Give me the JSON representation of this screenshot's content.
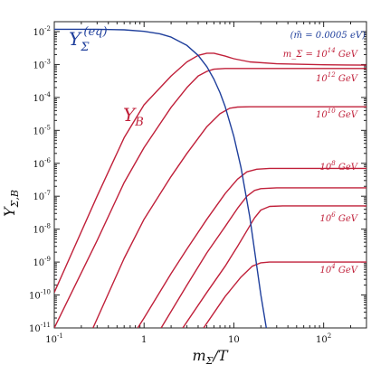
{
  "chart_data": {
    "type": "line",
    "title": "",
    "xlabel": "m_Σ/T",
    "ylabel": "Y_Σ,B",
    "x_scale": "log",
    "y_scale": "log",
    "xlim": [
      0.1,
      300
    ],
    "ylim": [
      1e-11,
      0.02
    ],
    "grid": false,
    "x_ticks": [
      {
        "value": 0.1,
        "base": "10",
        "exp": "-1"
      },
      {
        "value": 1,
        "base": "1",
        "exp": ""
      },
      {
        "value": 10,
        "base": "10",
        "exp": ""
      },
      {
        "value": 100,
        "base": "10",
        "exp": "2"
      }
    ],
    "y_ticks": [
      {
        "value": 0.01,
        "base": "10",
        "exp": "-2"
      },
      {
        "value": 0.001,
        "base": "10",
        "exp": "-3"
      },
      {
        "value": 0.0001,
        "base": "10",
        "exp": "-4"
      },
      {
        "value": 1e-05,
        "base": "10",
        "exp": "-5"
      },
      {
        "value": 1e-06,
        "base": "10",
        "exp": "-6"
      },
      {
        "value": 1e-07,
        "base": "10",
        "exp": "-7"
      },
      {
        "value": 1e-08,
        "base": "10",
        "exp": "-8"
      },
      {
        "value": 1e-09,
        "base": "10",
        "exp": "-9"
      },
      {
        "value": 1e-10,
        "base": "10",
        "exp": "-10"
      },
      {
        "value": 1e-11,
        "base": "10",
        "exp": "-11"
      }
    ],
    "annotation": "(m̃ = 0.0005 eV)",
    "eq_curve": {
      "label": "Y_Σ^(eq)",
      "color": "#1f3f9c",
      "points": [
        [
          0.1,
          0.0118
        ],
        [
          0.3,
          0.0118
        ],
        [
          0.6,
          0.0113
        ],
        [
          1.0,
          0.0102
        ],
        [
          1.5,
          0.0086
        ],
        [
          2.0,
          0.0068
        ],
        [
          3.0,
          0.0038
        ],
        [
          4.0,
          0.0019
        ],
        [
          5.0,
          0.00086
        ],
        [
          6.0,
          0.00036
        ],
        [
          7.0,
          0.00014
        ],
        [
          8.0,
          5.3e-05
        ],
        [
          10.0,
          6.6e-06
        ],
        [
          12.0,
          7.5e-07
        ],
        [
          15.0,
          2.5e-08
        ],
        [
          20.0,
          1e-10
        ],
        [
          23.0,
          1e-11
        ]
      ]
    },
    "yb_label": "Y_B",
    "series": [
      {
        "mass_label": "m_Σ = 10^14 GeV",
        "color": "#c0203a",
        "points": [
          [
            0.1,
            1.2e-10
          ],
          [
            0.3,
            1e-07
          ],
          [
            0.6,
            6e-06
          ],
          [
            1.0,
            6e-05
          ],
          [
            2.0,
            0.00045
          ],
          [
            3.0,
            0.0012
          ],
          [
            4.0,
            0.0019
          ],
          [
            5.0,
            0.0022
          ],
          [
            6.0,
            0.0022
          ],
          [
            8.0,
            0.0018
          ],
          [
            10.0,
            0.0015
          ],
          [
            15.0,
            0.0012
          ],
          [
            30.0,
            0.00105
          ],
          [
            100.0,
            0.00098
          ],
          [
            300.0,
            0.00096
          ]
        ]
      },
      {
        "mass_label": "",
        "color": "#c0203a",
        "points": [
          [
            0.1,
            1e-11
          ],
          [
            0.3,
            4.5e-09
          ],
          [
            0.6,
            2.6e-07
          ],
          [
            1.0,
            3e-06
          ],
          [
            2.0,
            5e-05
          ],
          [
            3.0,
            0.0002
          ],
          [
            4.0,
            0.00045
          ],
          [
            5.0,
            0.00062
          ],
          [
            6.0,
            0.00072
          ],
          [
            8.0,
            0.00076
          ],
          [
            15.0,
            0.00076
          ],
          [
            300.0,
            0.00076
          ]
        ]
      },
      {
        "mass_label": "10^12 GeV",
        "color": "#c0203a",
        "points": [
          [
            0.27,
            1e-11
          ],
          [
            0.6,
            1.3e-09
          ],
          [
            1.0,
            2e-08
          ],
          [
            2.0,
            4e-07
          ],
          [
            3.0,
            2e-06
          ],
          [
            5.0,
            1.3e-05
          ],
          [
            7.0,
            3.2e-05
          ],
          [
            9.0,
            4.7e-05
          ],
          [
            11.0,
            5.1e-05
          ],
          [
            15.0,
            5.2e-05
          ],
          [
            300.0,
            5.2e-05
          ]
        ]
      },
      {
        "mass_label": "10^10 GeV",
        "color": "#c0203a",
        "points": [
          [
            0.85,
            1e-11
          ],
          [
            1.0,
            2e-11
          ],
          [
            2.0,
            4.5e-10
          ],
          [
            3.0,
            2.5e-09
          ],
          [
            5.0,
            2e-08
          ],
          [
            8.0,
            1.2e-07
          ],
          [
            11.0,
            3.3e-07
          ],
          [
            14.0,
            5.5e-07
          ],
          [
            18.0,
            6.6e-07
          ],
          [
            25.0,
            7e-07
          ],
          [
            300.0,
            7e-07
          ]
        ]
      },
      {
        "mass_label": "10^8 GeV",
        "color": "#c0203a",
        "points": [
          [
            1.55,
            1e-11
          ],
          [
            3.0,
            2e-10
          ],
          [
            5.0,
            1.9e-09
          ],
          [
            8.0,
            1.2e-08
          ],
          [
            11.0,
            4.3e-08
          ],
          [
            14.0,
            1e-07
          ],
          [
            17.0,
            1.5e-07
          ],
          [
            20.0,
            1.7e-07
          ],
          [
            30.0,
            1.8e-07
          ],
          [
            300.0,
            1.8e-07
          ]
        ]
      },
      {
        "mass_label": "10^6 GeV",
        "color": "#c0203a",
        "points": [
          [
            2.7,
            1e-11
          ],
          [
            5.0,
            1.2e-10
          ],
          [
            8.0,
            7.5e-10
          ],
          [
            11.0,
            3e-09
          ],
          [
            14.0,
            9e-09
          ],
          [
            17.0,
            2.2e-08
          ],
          [
            20.0,
            3.8e-08
          ],
          [
            25.0,
            4.9e-08
          ],
          [
            35.0,
            5.1e-08
          ],
          [
            300.0,
            5.1e-08
          ]
        ]
      },
      {
        "mass_label": "10^4 GeV",
        "color": "#c0203a",
        "points": [
          [
            4.6,
            1e-11
          ],
          [
            8.0,
            9e-11
          ],
          [
            12.0,
            3.5e-10
          ],
          [
            16.0,
            7.5e-10
          ],
          [
            20.0,
            9.5e-10
          ],
          [
            25.0,
            1e-09
          ],
          [
            300.0,
            1e-09
          ]
        ]
      }
    ]
  }
}
